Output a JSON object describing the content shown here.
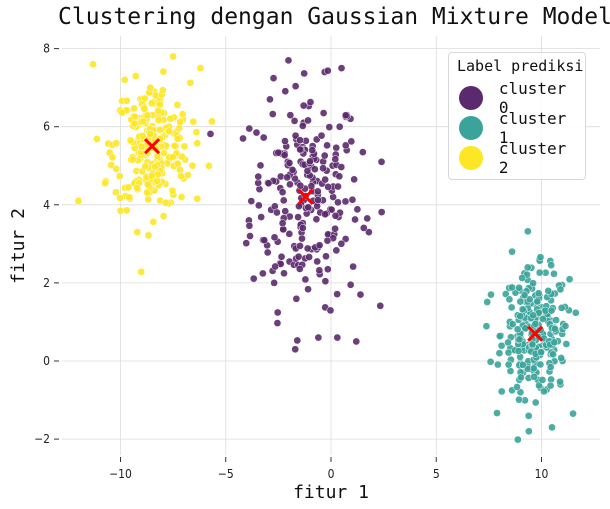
{
  "chart_data": {
    "type": "scatter",
    "title": "Clustering dengan Gaussian Mixture Model",
    "xlabel": "fitur 1",
    "ylabel": "fitur 2",
    "xlim": [
      -12,
      12.5
    ],
    "ylim": [
      -2.3,
      8.3
    ],
    "xticks": [
      -10,
      -5,
      0,
      5,
      10
    ],
    "yticks": [
      -2,
      0,
      2,
      4,
      6,
      8
    ],
    "grid": true,
    "legend": {
      "title": "Label prediksi",
      "position": "upper right"
    },
    "series": [
      {
        "name": "cluster 0",
        "color": "#5b2a6e",
        "center": [
          -1.2,
          4.2
        ],
        "spread": [
          1.3,
          1.4
        ],
        "count": 250,
        "sample_points": [
          [
            -0.3,
            7.4
          ],
          [
            0.5,
            7.5
          ],
          [
            -2.9,
            6.7
          ],
          [
            -1.3,
            6.1
          ],
          [
            -3.9,
            3.6
          ],
          [
            -2.7,
            2.0
          ],
          [
            1.4,
            1.7
          ],
          [
            2.4,
            5.1
          ],
          [
            -0.6,
            0.6
          ],
          [
            0.3,
            0.6
          ],
          [
            1.2,
            0.5
          ],
          [
            -1.7,
            0.3
          ],
          [
            1.8,
            3.3
          ],
          [
            -3.4,
            4.4
          ],
          [
            0.1,
            4.2
          ]
        ]
      },
      {
        "name": "cluster 1",
        "color": "#3aa39a",
        "center": [
          9.7,
          0.7
        ],
        "spread": [
          0.8,
          0.8
        ],
        "count": 250,
        "sample_points": [
          [
            8.6,
            2.8
          ],
          [
            9.9,
            2.6
          ],
          [
            7.6,
            1.7
          ],
          [
            11.3,
            1.3
          ],
          [
            9.4,
            -1.8
          ],
          [
            10.5,
            -1.7
          ],
          [
            8.0,
            0.2
          ],
          [
            10.9,
            -0.6
          ],
          [
            9.0,
            -0.8
          ],
          [
            11.0,
            0.0
          ]
        ]
      },
      {
        "name": "cluster 2",
        "color": "#fde725",
        "center": [
          -8.5,
          5.5
        ],
        "spread": [
          0.9,
          0.8
        ],
        "count": 250,
        "sample_points": [
          [
            -11.3,
            7.6
          ],
          [
            -7.5,
            7.8
          ],
          [
            -6.2,
            7.5
          ],
          [
            -12.0,
            4.1
          ],
          [
            -5.8,
            5.0
          ],
          [
            -9.2,
            3.3
          ],
          [
            -10.7,
            4.6
          ],
          [
            -7.1,
            4.2
          ],
          [
            -8.4,
            6.9
          ],
          [
            -9.8,
            7.2
          ]
        ]
      }
    ],
    "centroids": {
      "color": "#ff0000",
      "marker": "x",
      "points": [
        [
          -8.5,
          5.5
        ],
        [
          -1.2,
          4.2
        ],
        [
          9.7,
          0.7
        ]
      ]
    }
  },
  "legend": {
    "title": "Label prediksi",
    "items": [
      {
        "label": "cluster 0",
        "color": "#5b2a6e"
      },
      {
        "label": "cluster 1",
        "color": "#3aa39a"
      },
      {
        "label": "cluster 2",
        "color": "#fde725"
      }
    ]
  }
}
